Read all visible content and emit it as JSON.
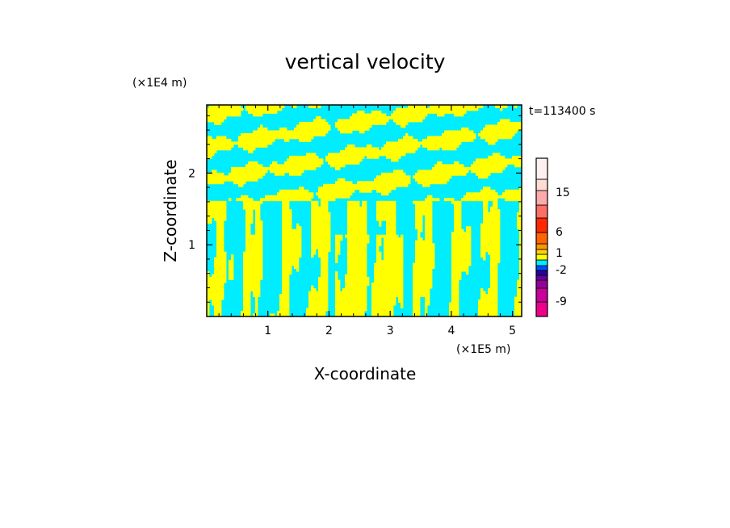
{
  "chart_data": {
    "type": "heatmap",
    "title": "vertical velocity",
    "xlabel": "X-coordinate",
    "ylabel": "Z-coordinate",
    "x_unit": "(×1E5 m)",
    "y_unit": "(×1E4 m)",
    "time_label": "t=113400 s",
    "xlim": [
      0,
      5.15
    ],
    "ylim": [
      0,
      2.95
    ],
    "x_ticks": [
      1,
      2,
      3,
      4,
      5
    ],
    "x_tick_labels": [
      "1",
      "2",
      "3",
      "4",
      "5"
    ],
    "y_ticks": [
      1,
      2
    ],
    "y_tick_labels": [
      "1",
      "2"
    ],
    "field_colors": {
      "negative": "#00ecff",
      "positive": "#ffff00"
    },
    "colorbar": {
      "levels": [
        {
          "color": "#ec008c"
        },
        {
          "color": "#c8009c"
        },
        {
          "color": "#96009a"
        },
        {
          "color": "#64009b"
        },
        {
          "color": "#2800a0"
        },
        {
          "color": "#0050ff"
        },
        {
          "color": "#00ecff"
        },
        {
          "color": "#ffff00"
        },
        {
          "color": "#ffd200"
        },
        {
          "color": "#ff9600"
        },
        {
          "color": "#ff6400"
        },
        {
          "color": "#ff2800"
        },
        {
          "color": "#ff6e64"
        },
        {
          "color": "#ffaaaa"
        },
        {
          "color": "#ffdcd2"
        },
        {
          "color": "#fff0f0"
        }
      ],
      "tick_labels": [
        {
          "label": "15",
          "value": 15
        },
        {
          "label": "6",
          "value": 6
        },
        {
          "label": "1",
          "value": 1
        },
        {
          "label": "-2",
          "value": -2
        },
        {
          "label": "-9",
          "value": -9
        }
      ]
    }
  }
}
